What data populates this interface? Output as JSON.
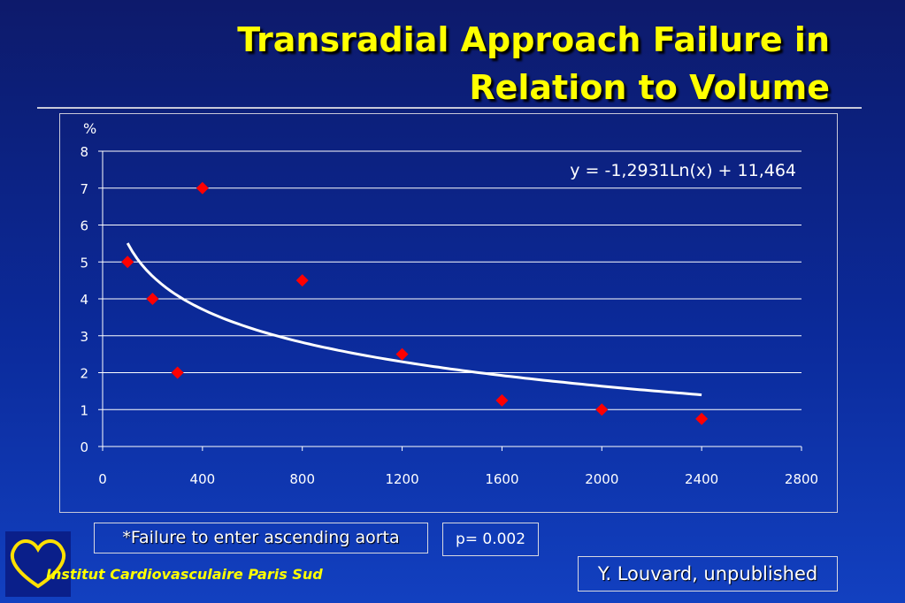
{
  "slide": {
    "title_line1": "Transradial Approach Failure in",
    "title_line2": "Relation to Volume",
    "footnote": "*Failure to enter ascending aorta",
    "p_value": "p= 0.002",
    "author": "Y. Louvard, unpublished",
    "institution": "Institut Cardiovasculaire Paris Sud",
    "colors": {
      "title": "#ffff00",
      "marker": "#ff0000",
      "trendline": "#ffffff",
      "gridline": "#ffffff",
      "background": "#0b2a9a",
      "logo_heart": "#ffe000"
    }
  },
  "chart_data": {
    "type": "scatter",
    "ylabel": "%",
    "xlabel": "",
    "xlim": [
      0,
      2800
    ],
    "ylim": [
      0,
      8
    ],
    "x_ticks": [
      "0",
      "400",
      "800",
      "1200",
      "1600",
      "2000",
      "2400",
      "2800"
    ],
    "y_ticks": [
      "0",
      "1",
      "2",
      "3",
      "4",
      "5",
      "6",
      "7",
      "8"
    ],
    "grid": "horizontal",
    "series": [
      {
        "marker": "diamond",
        "points": [
          {
            "x": 100,
            "y": 5
          },
          {
            "x": 200,
            "y": 4
          },
          {
            "x": 300,
            "y": 2
          },
          {
            "x": 400,
            "y": 7
          },
          {
            "x": 800,
            "y": 4.5
          },
          {
            "x": 1200,
            "y": 2.5
          },
          {
            "x": 1600,
            "y": 1.25
          },
          {
            "x": 2000,
            "y": 1
          },
          {
            "x": 2400,
            "y": 0.75
          }
        ]
      }
    ],
    "trendline": {
      "type": "logarithmic",
      "a": -1.2931,
      "b": 11.464,
      "x_range": [
        100,
        2400
      ],
      "equation_label": "y = -1,2931Ln(x) + 11,464"
    }
  }
}
